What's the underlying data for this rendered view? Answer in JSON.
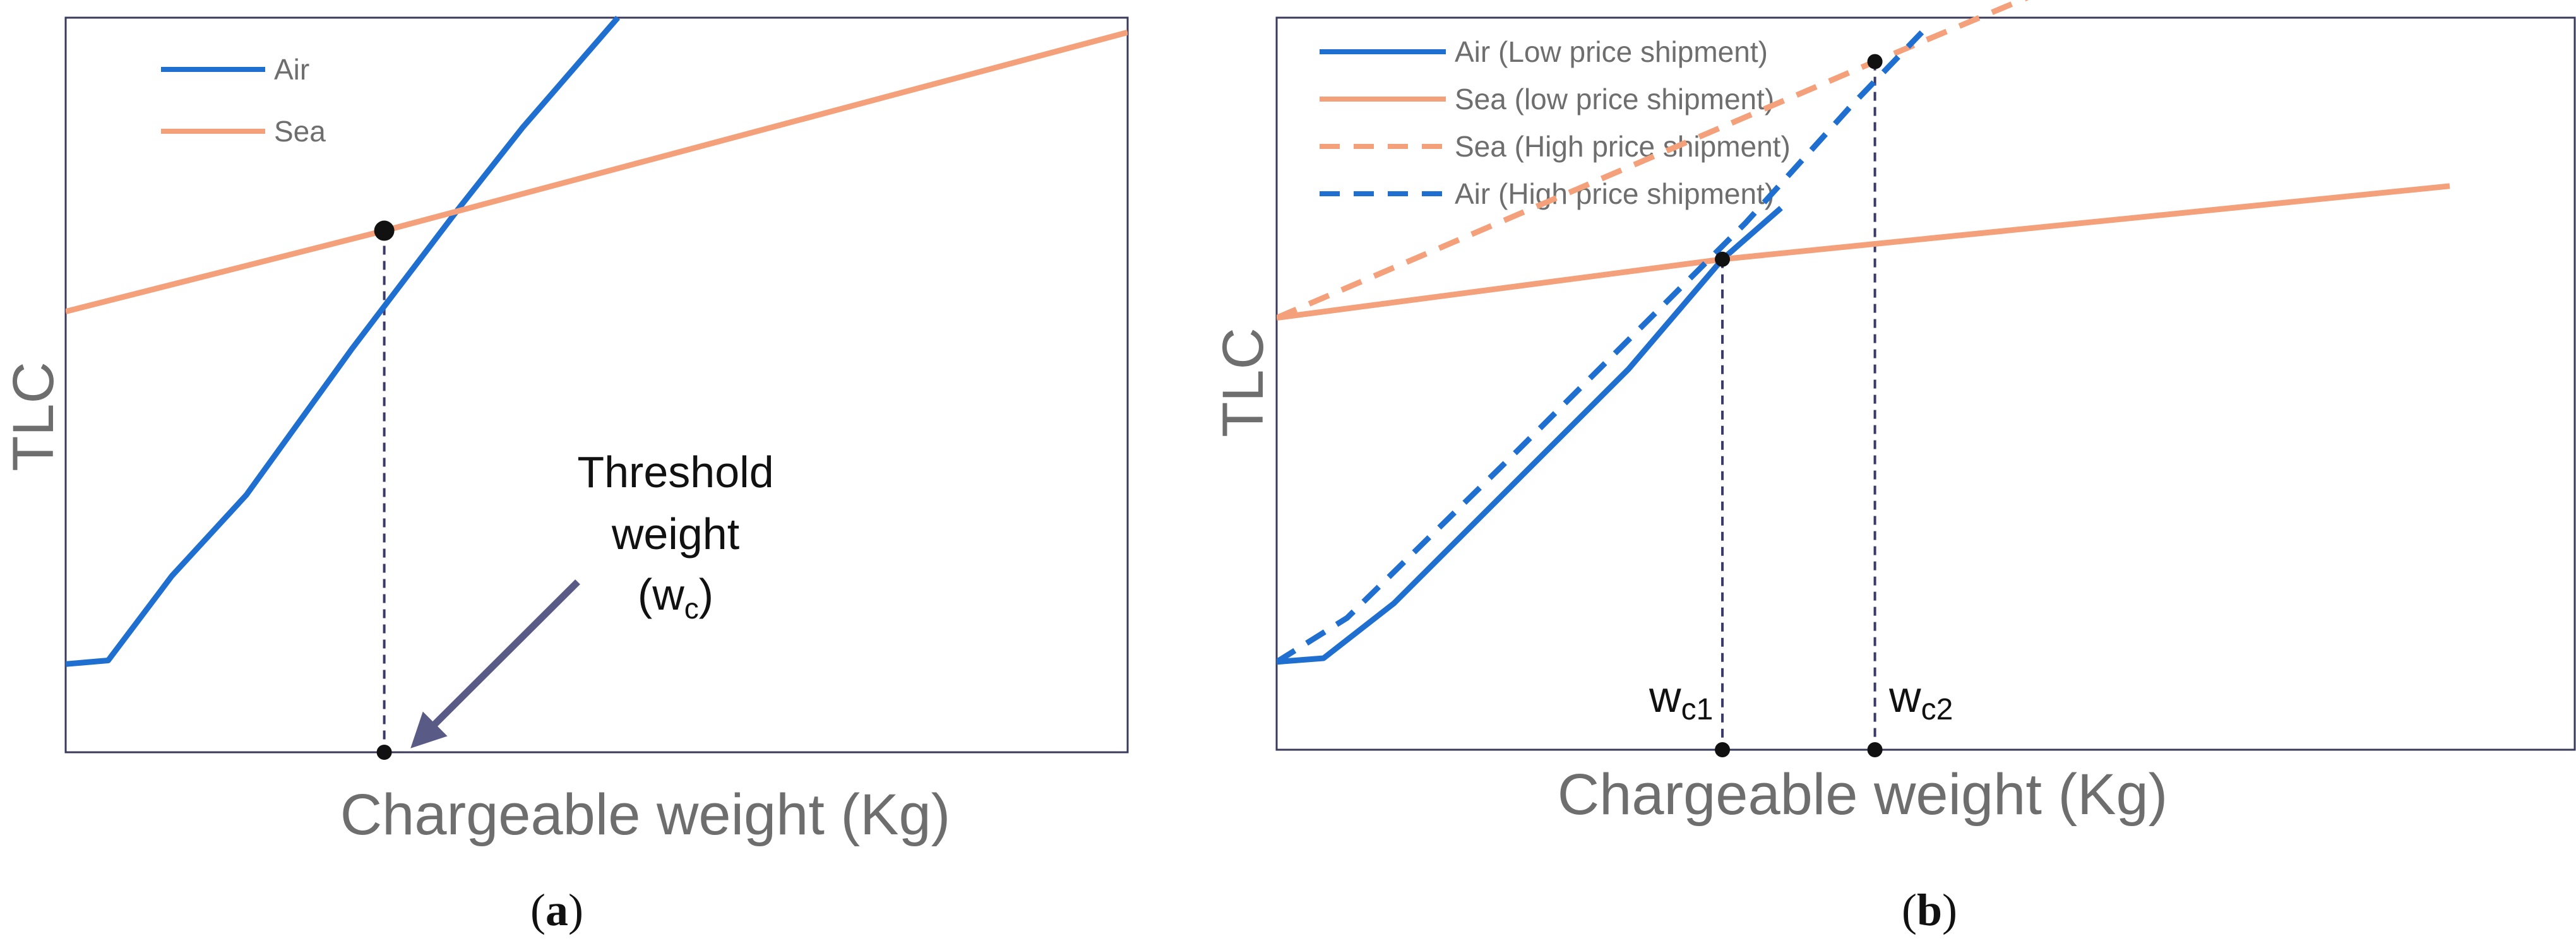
{
  "panels": {
    "a": {
      "caption_open": "(",
      "caption_letter": "a",
      "caption_close": ")",
      "ylabel": "TLC",
      "xlabel": "Chargeable weight (Kg)",
      "annotation": {
        "line1": "Threshold",
        "line2": "weight",
        "line3_open": "(w",
        "line3_sub": "c",
        "line3_close": ")"
      },
      "legend": [
        {
          "label": "Air",
          "color": "#1f6fd0"
        },
        {
          "label": "Sea",
          "color": "#f4a07a"
        }
      ]
    },
    "b": {
      "caption_open": "(",
      "caption_letter": "b",
      "caption_close": ")",
      "ylabel": "TLC",
      "xlabel": "Chargeable weight (Kg)",
      "markers": [
        {
          "base": "w",
          "sub": "c1"
        },
        {
          "base": "w",
          "sub": "c2"
        }
      ],
      "legend": [
        {
          "label": "Air (Low price shipment)",
          "color": "#1f6fd0",
          "dash": false
        },
        {
          "label": "Sea (low price shipment)",
          "color": "#f4a07a",
          "dash": false
        },
        {
          "label": "Sea (High price shipment)",
          "color": "#f4a07a",
          "dash": true
        },
        {
          "label": "Air (High price shipment)",
          "color": "#1f6fd0",
          "dash": true
        }
      ]
    }
  },
  "colors": {
    "air": "#1f6fd0",
    "sea": "#f4a07a",
    "frame": "#3a3a5a",
    "guide": "#3a3a6a",
    "arrow": "#5a5a86",
    "label": "#6e6e6e",
    "text": "#111111"
  },
  "chart_data": [
    {
      "type": "line",
      "ylabel": "TLC",
      "xlabel": "Chargeable weight (Kg)",
      "xlim": [
        0,
        100
      ],
      "ylim": [
        0,
        100
      ],
      "series": [
        {
          "name": "Air",
          "style": "solid",
          "x": [
            0,
            4,
            10,
            17,
            27,
            37,
            43,
            52
          ],
          "y": [
            12,
            12.5,
            24,
            35,
            55,
            74,
            85,
            100
          ]
        },
        {
          "name": "Sea",
          "style": "solid",
          "x": [
            0,
            30,
            100
          ],
          "y": [
            60,
            71,
            98
          ]
        }
      ],
      "points": [
        {
          "x": 30,
          "y": 71
        },
        {
          "x": 30,
          "y": 0
        }
      ],
      "grid": false,
      "legend_position": "top-left"
    },
    {
      "type": "line",
      "ylabel": "TLC",
      "xlabel": "Chargeable weight (Kg)",
      "xlim": [
        0,
        100
      ],
      "ylim": [
        0,
        100
      ],
      "series": [
        {
          "name": "Air (Low price shipment)",
          "style": "solid",
          "x": [
            0,
            4,
            10,
            20,
            30,
            38,
            43
          ],
          "y": [
            12,
            12.5,
            20,
            36,
            52,
            67,
            74
          ]
        },
        {
          "name": "Sea (low price shipment)",
          "style": "solid",
          "x": [
            0,
            38,
            100
          ],
          "y": [
            59,
            67,
            77
          ]
        },
        {
          "name": "Sea (High price shipment)",
          "style": "dashed",
          "x": [
            0,
            51,
            100
          ],
          "y": [
            59,
            94,
            127
          ]
        },
        {
          "name": "Air (High price shipment)",
          "style": "dashed",
          "x": [
            0,
            6,
            20,
            30,
            40,
            49,
            55
          ],
          "y": [
            12,
            18,
            40,
            56,
            72,
            88,
            98
          ]
        }
      ],
      "points": [
        {
          "label": "wc1",
          "x": 38,
          "y": 67
        },
        {
          "label": "wc2",
          "x": 51,
          "y": 94
        },
        {
          "x": 38,
          "y": 0
        },
        {
          "x": 51,
          "y": 0
        }
      ],
      "grid": false,
      "legend_position": "top-left"
    }
  ]
}
